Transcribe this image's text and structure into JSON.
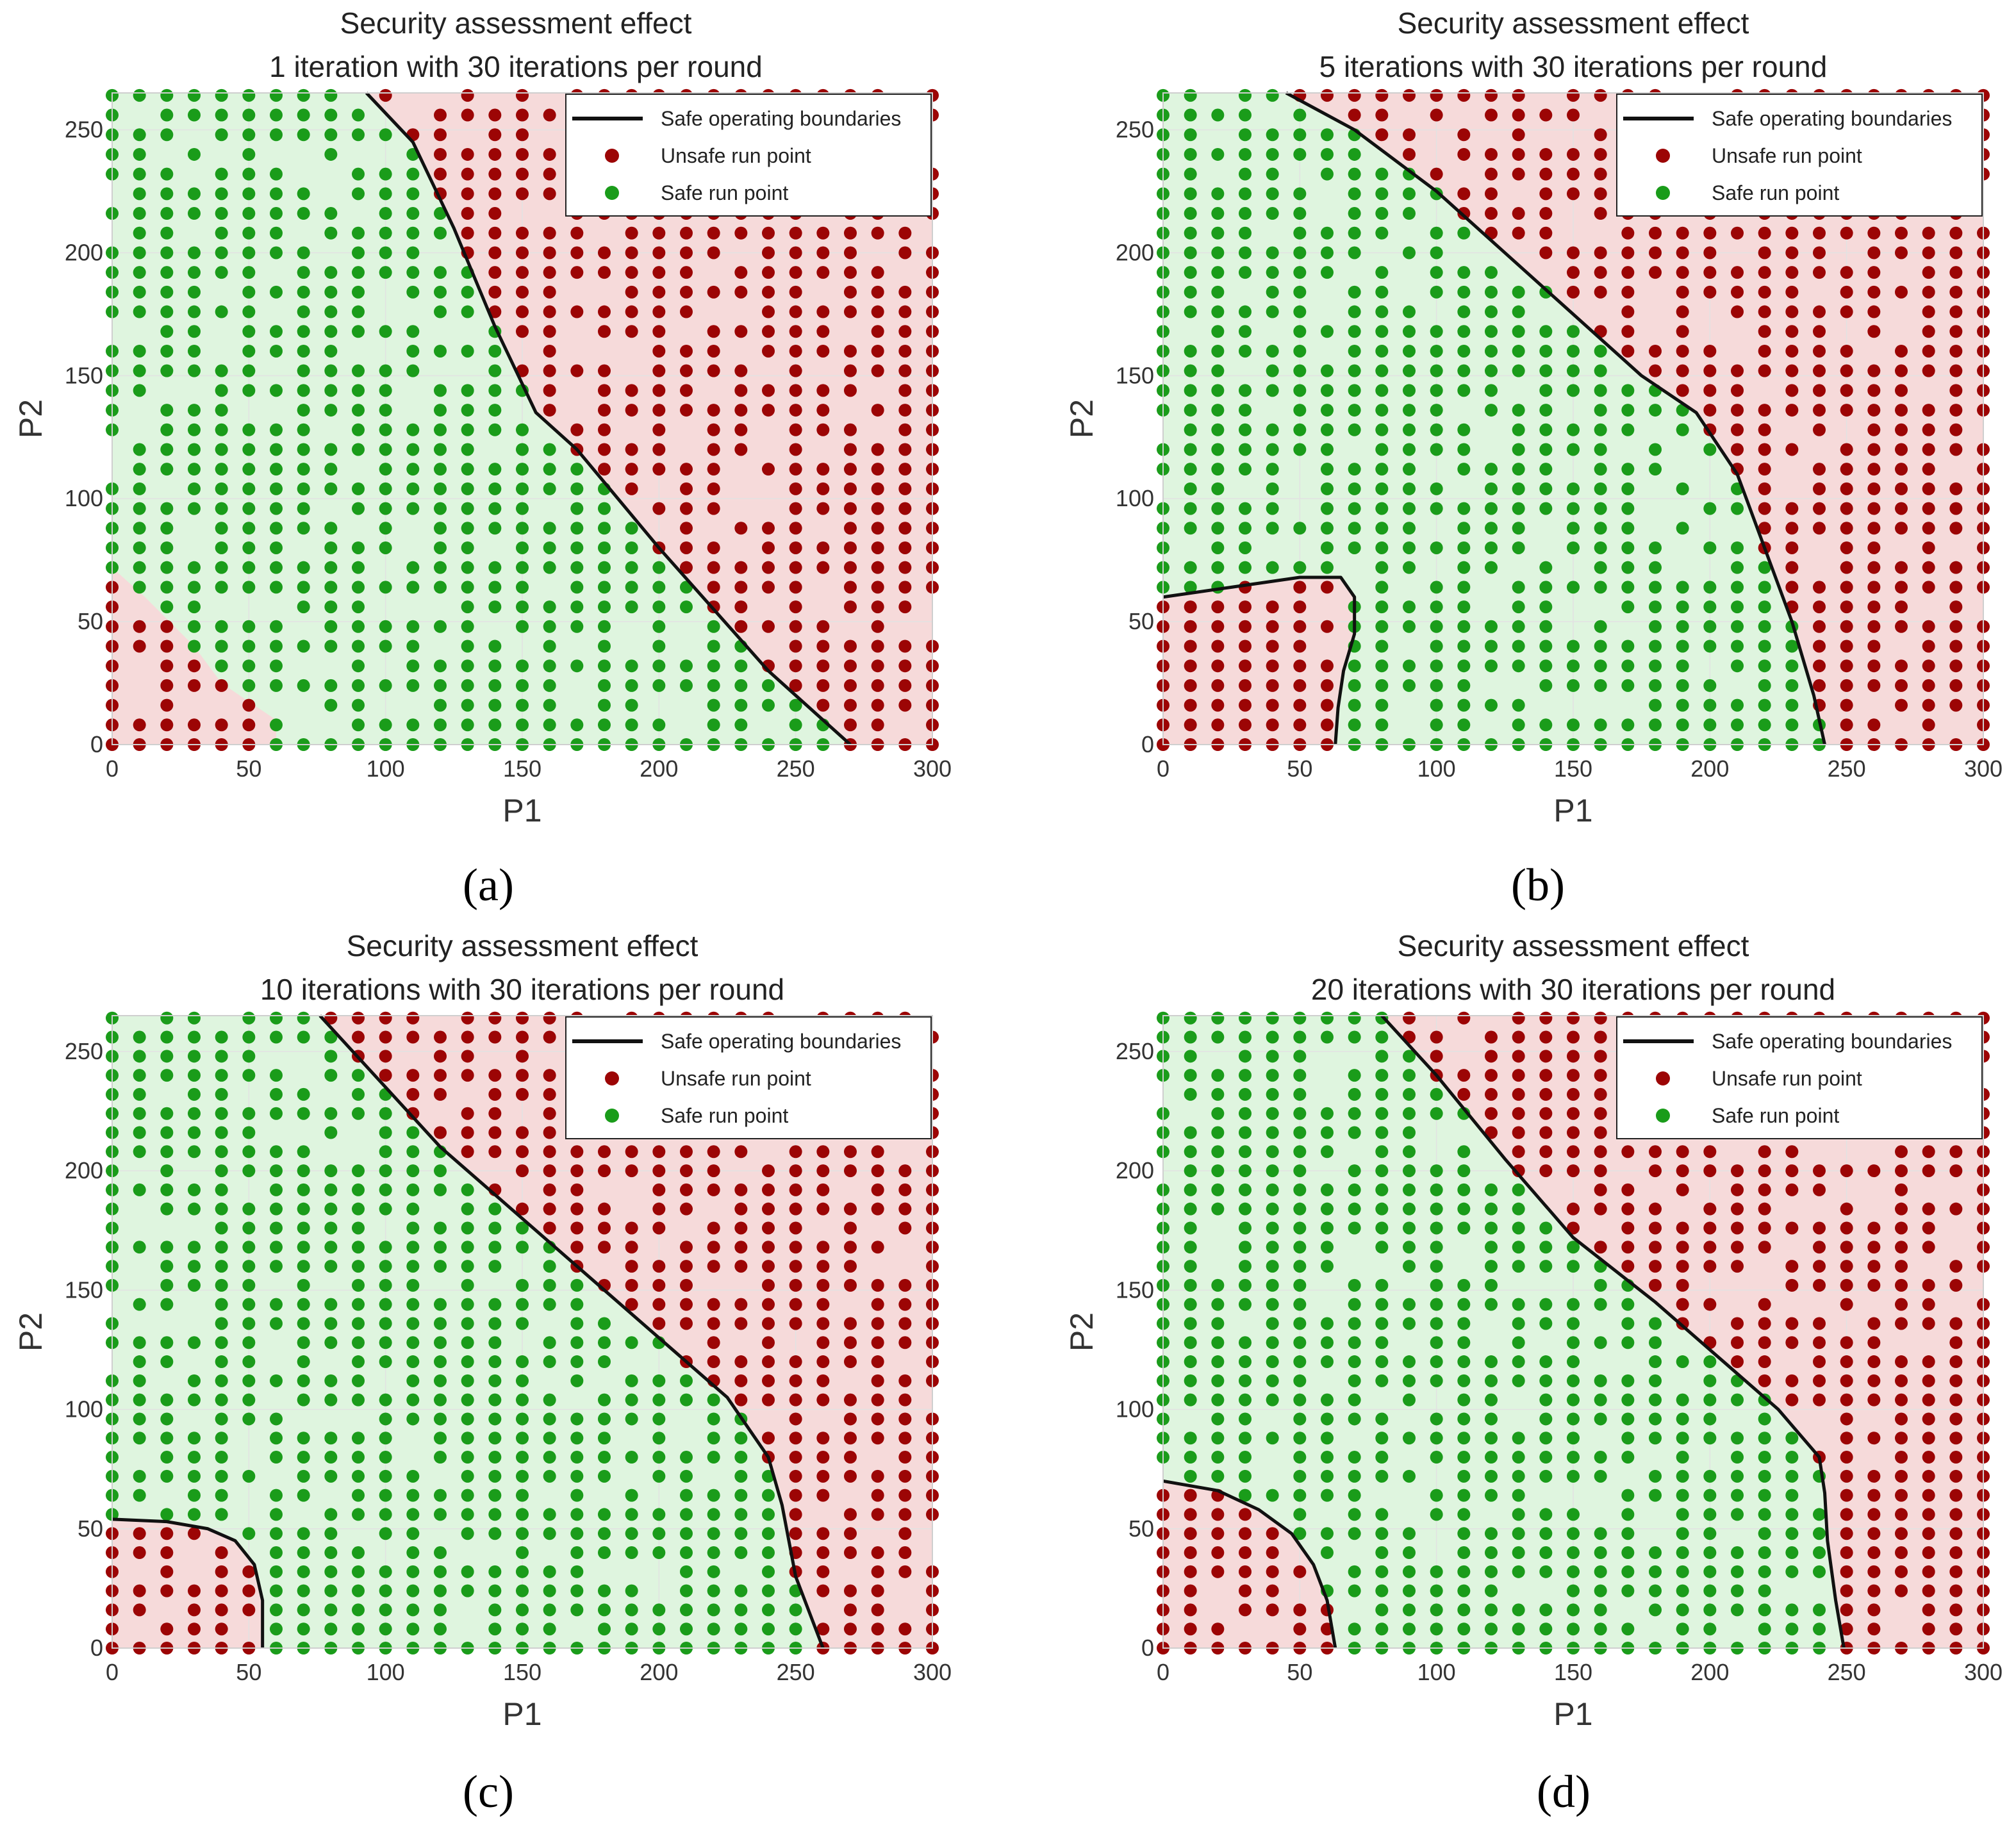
{
  "figure": {
    "colors": {
      "safe_point": "#1a9c1a",
      "unsafe_point": "#9c0505",
      "safe_region": "#dff5df",
      "unsafe_region": "#f6dada",
      "boundary": "#111111",
      "grid": "#e2e2e2",
      "axes_frame": "#cfcfcf"
    }
  },
  "chart_data": [
    {
      "type": "scatter",
      "panel_caption": "(a)",
      "title": [
        "Security assessment effect",
        "1 iteration with 30 iterations per round"
      ],
      "xlabel": "P1",
      "ylabel": "P2",
      "xlim": [
        0,
        300
      ],
      "ylim": [
        0,
        265
      ],
      "xticks": [
        0,
        50,
        100,
        150,
        200,
        250,
        300
      ],
      "yticks": [
        0,
        50,
        100,
        150,
        200,
        250
      ],
      "grid": true,
      "legend": {
        "position": "top-right",
        "entries": [
          "Safe operating boundaries",
          "Unsafe run point",
          "Safe run point"
        ]
      },
      "safe_regions": [
        [
          [
            0,
            0
          ],
          [
            270,
            0
          ],
          [
            240,
            30
          ],
          [
            200,
            80
          ],
          [
            170,
            120
          ],
          [
            155,
            135
          ],
          [
            140,
            170
          ],
          [
            125,
            210
          ],
          [
            110,
            245
          ],
          [
            93,
            265
          ],
          [
            0,
            265
          ]
        ]
      ],
      "boundaries": [
        [
          [
            93,
            265
          ],
          [
            110,
            245
          ],
          [
            125,
            210
          ],
          [
            140,
            170
          ],
          [
            155,
            135
          ],
          [
            170,
            120
          ],
          [
            200,
            80
          ],
          [
            240,
            30
          ],
          [
            270,
            0
          ]
        ]
      ],
      "unsafe_islands": [
        [
          [
            0,
            0
          ],
          [
            60,
            0
          ],
          [
            60,
            10
          ],
          [
            40,
            25
          ],
          [
            30,
            40
          ],
          [
            12,
            60
          ],
          [
            0,
            72
          ]
        ]
      ],
      "series": [
        {
          "name": "Unsafe run point",
          "description_grid": {
            "x_start": 0,
            "x_end": 300,
            "x_step": 10,
            "y_start": 0,
            "y_end": 265,
            "y_step": 8
          }
        },
        {
          "name": "Safe run point",
          "description_grid": {
            "x_start": 0,
            "x_end": 300,
            "x_step": 10,
            "y_start": 0,
            "y_end": 265,
            "y_step": 8
          }
        }
      ]
    },
    {
      "type": "scatter",
      "panel_caption": "(b)",
      "title": [
        "Security assessment effect",
        "5 iterations with 30 iterations per round"
      ],
      "xlabel": "P1",
      "ylabel": "P2",
      "xlim": [
        0,
        300
      ],
      "ylim": [
        0,
        265
      ],
      "xticks": [
        0,
        50,
        100,
        150,
        200,
        250,
        300
      ],
      "yticks": [
        0,
        50,
        100,
        150,
        200,
        250
      ],
      "grid": true,
      "legend": {
        "position": "top-right",
        "entries": [
          "Safe operating boundaries",
          "Unsafe run point",
          "Safe run point"
        ]
      },
      "safe_regions": [
        [
          [
            0,
            0
          ],
          [
            242,
            0
          ],
          [
            238,
            20
          ],
          [
            230,
            50
          ],
          [
            220,
            80
          ],
          [
            210,
            110
          ],
          [
            195,
            135
          ],
          [
            175,
            150
          ],
          [
            150,
            175
          ],
          [
            125,
            200
          ],
          [
            100,
            225
          ],
          [
            70,
            250
          ],
          [
            45,
            265
          ],
          [
            0,
            265
          ]
        ]
      ],
      "boundaries": [
        [
          [
            45,
            265
          ],
          [
            70,
            250
          ],
          [
            100,
            225
          ],
          [
            125,
            200
          ],
          [
            150,
            175
          ],
          [
            175,
            150
          ],
          [
            195,
            135
          ],
          [
            210,
            110
          ],
          [
            220,
            80
          ],
          [
            230,
            50
          ],
          [
            238,
            20
          ],
          [
            242,
            0
          ]
        ],
        [
          [
            0,
            60
          ],
          [
            25,
            64
          ],
          [
            50,
            68
          ],
          [
            65,
            68
          ],
          [
            70,
            60
          ],
          [
            70,
            45
          ],
          [
            66,
            30
          ],
          [
            64,
            15
          ],
          [
            63,
            0
          ]
        ]
      ],
      "unsafe_islands": [
        [
          [
            0,
            0
          ],
          [
            63,
            0
          ],
          [
            64,
            15
          ],
          [
            66,
            30
          ],
          [
            70,
            45
          ],
          [
            70,
            60
          ],
          [
            65,
            68
          ],
          [
            50,
            68
          ],
          [
            25,
            64
          ],
          [
            0,
            60
          ]
        ]
      ],
      "series": [
        {
          "name": "Unsafe run point",
          "description_grid": {
            "x_start": 0,
            "x_end": 300,
            "x_step": 10,
            "y_start": 0,
            "y_end": 265,
            "y_step": 8
          }
        },
        {
          "name": "Safe run point",
          "description_grid": {
            "x_start": 0,
            "x_end": 300,
            "x_step": 10,
            "y_start": 0,
            "y_end": 265,
            "y_step": 8
          }
        }
      ]
    },
    {
      "type": "scatter",
      "panel_caption": "(c)",
      "title": [
        "Security assessment effect",
        "10 iterations with 30 iterations per round"
      ],
      "xlabel": "P1",
      "ylabel": "P2",
      "xlim": [
        0,
        300
      ],
      "ylim": [
        0,
        265
      ],
      "xticks": [
        0,
        50,
        100,
        150,
        200,
        250,
        300
      ],
      "yticks": [
        0,
        50,
        100,
        150,
        200,
        250
      ],
      "grid": true,
      "legend": {
        "position": "top-right",
        "entries": [
          "Safe operating boundaries",
          "Unsafe run point",
          "Safe run point"
        ]
      },
      "safe_regions": [
        [
          [
            0,
            0
          ],
          [
            260,
            0
          ],
          [
            250,
            30
          ],
          [
            245,
            60
          ],
          [
            240,
            80
          ],
          [
            225,
            105
          ],
          [
            205,
            125
          ],
          [
            180,
            150
          ],
          [
            150,
            180
          ],
          [
            120,
            210
          ],
          [
            100,
            235
          ],
          [
            76,
            265
          ],
          [
            0,
            265
          ]
        ]
      ],
      "boundaries": [
        [
          [
            76,
            265
          ],
          [
            100,
            235
          ],
          [
            120,
            210
          ],
          [
            150,
            180
          ],
          [
            180,
            150
          ],
          [
            205,
            125
          ],
          [
            225,
            105
          ],
          [
            240,
            80
          ],
          [
            245,
            60
          ],
          [
            250,
            30
          ],
          [
            260,
            0
          ]
        ],
        [
          [
            0,
            54
          ],
          [
            20,
            53
          ],
          [
            35,
            50
          ],
          [
            45,
            45
          ],
          [
            52,
            35
          ],
          [
            55,
            20
          ],
          [
            55,
            0
          ]
        ]
      ],
      "unsafe_islands": [
        [
          [
            0,
            0
          ],
          [
            55,
            0
          ],
          [
            55,
            20
          ],
          [
            52,
            35
          ],
          [
            45,
            45
          ],
          [
            35,
            50
          ],
          [
            20,
            53
          ],
          [
            0,
            54
          ]
        ]
      ],
      "series": [
        {
          "name": "Unsafe run point",
          "description_grid": {
            "x_start": 0,
            "x_end": 300,
            "x_step": 10,
            "y_start": 0,
            "y_end": 265,
            "y_step": 8
          }
        },
        {
          "name": "Safe run point",
          "description_grid": {
            "x_start": 0,
            "x_end": 300,
            "x_step": 10,
            "y_start": 0,
            "y_end": 265,
            "y_step": 8
          }
        }
      ]
    },
    {
      "type": "scatter",
      "panel_caption": "(d)",
      "title": [
        "Security assessment effect",
        "20 iterations with 30 iterations per round"
      ],
      "xlabel": "P1",
      "ylabel": "P2",
      "xlim": [
        0,
        300
      ],
      "ylim": [
        0,
        265
      ],
      "xticks": [
        0,
        50,
        100,
        150,
        200,
        250,
        300
      ],
      "yticks": [
        0,
        50,
        100,
        150,
        200,
        250
      ],
      "grid": true,
      "legend": {
        "position": "top-right",
        "entries": [
          "Safe operating boundaries",
          "Unsafe run point",
          "Safe run point"
        ]
      },
      "safe_regions": [
        [
          [
            0,
            0
          ],
          [
            249,
            0
          ],
          [
            246,
            20
          ],
          [
            243,
            45
          ],
          [
            242,
            65
          ],
          [
            240,
            80
          ],
          [
            225,
            100
          ],
          [
            205,
            120
          ],
          [
            180,
            145
          ],
          [
            150,
            172
          ],
          [
            125,
            205
          ],
          [
            100,
            240
          ],
          [
            80,
            265
          ],
          [
            0,
            265
          ]
        ]
      ],
      "boundaries": [
        [
          [
            80,
            265
          ],
          [
            100,
            240
          ],
          [
            125,
            205
          ],
          [
            150,
            172
          ],
          [
            180,
            145
          ],
          [
            205,
            120
          ],
          [
            225,
            100
          ],
          [
            240,
            80
          ],
          [
            242,
            65
          ],
          [
            243,
            45
          ],
          [
            246,
            20
          ],
          [
            249,
            0
          ]
        ],
        [
          [
            0,
            70
          ],
          [
            20,
            66
          ],
          [
            35,
            58
          ],
          [
            47,
            48
          ],
          [
            55,
            35
          ],
          [
            60,
            20
          ],
          [
            63,
            0
          ]
        ]
      ],
      "unsafe_islands": [
        [
          [
            0,
            0
          ],
          [
            63,
            0
          ],
          [
            60,
            20
          ],
          [
            55,
            35
          ],
          [
            47,
            48
          ],
          [
            35,
            58
          ],
          [
            20,
            66
          ],
          [
            0,
            70
          ]
        ]
      ],
      "series": [
        {
          "name": "Unsafe run point",
          "description_grid": {
            "x_start": 0,
            "x_end": 300,
            "x_step": 10,
            "y_start": 0,
            "y_end": 265,
            "y_step": 8
          }
        },
        {
          "name": "Safe run point",
          "description_grid": {
            "x_start": 0,
            "x_end": 300,
            "x_step": 10,
            "y_start": 0,
            "y_end": 265,
            "y_step": 8
          }
        }
      ]
    }
  ]
}
